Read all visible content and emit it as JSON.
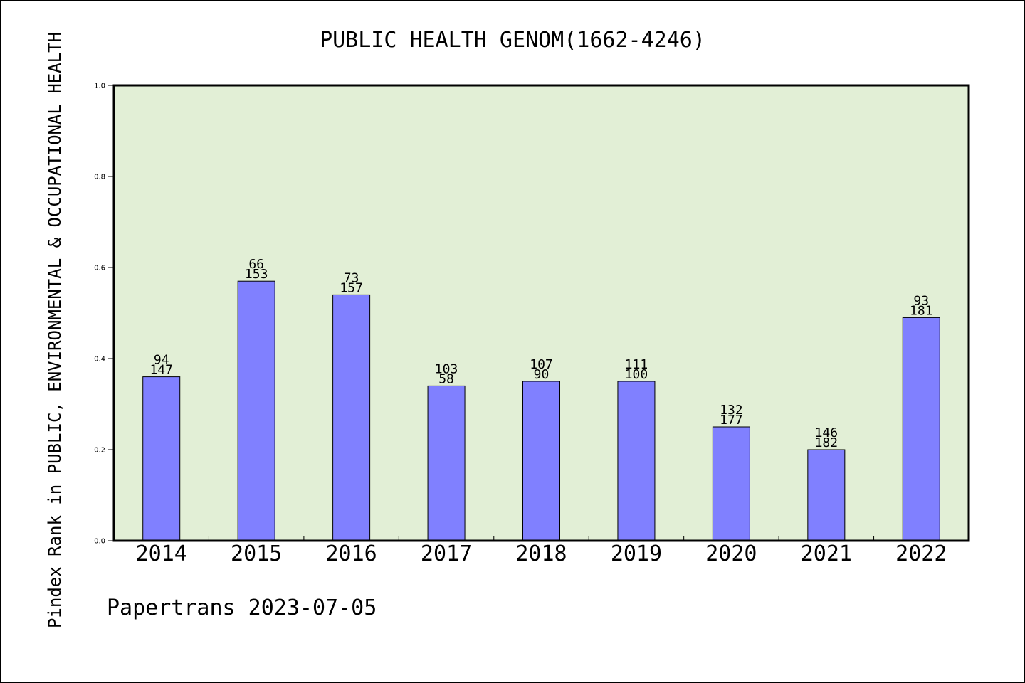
{
  "chart_data": {
    "type": "bar",
    "title": "PUBLIC HEALTH GENOM(1662-4246)",
    "ylabel": "Pindex Rank in PUBLIC, ENVIRONMENTAL & OCCUPATIONAL HEALTH",
    "xlabel": "",
    "footer": "Papertrans 2023-07-05",
    "ylim": [
      0,
      1.0
    ],
    "yticks": [
      "0.0",
      "0.2",
      "0.4",
      "0.6",
      "0.8",
      "1.0"
    ],
    "grid": false,
    "categories": [
      "2014",
      "2015",
      "2016",
      "2017",
      "2018",
      "2019",
      "2020",
      "2021",
      "2022"
    ],
    "values": [
      0.36,
      0.57,
      0.54,
      0.34,
      0.35,
      0.35,
      0.25,
      0.2,
      0.49
    ],
    "labels_top": [
      "94",
      "66",
      "73",
      "103",
      "107",
      "111",
      "132",
      "146",
      "93"
    ],
    "labels_bottom": [
      "147",
      "153",
      "157",
      "58",
      "90",
      "100",
      "177",
      "182",
      "181"
    ],
    "colors": {
      "bar": "#8080ff",
      "plot_background": "#e2efd6",
      "axis": "#000000"
    }
  }
}
